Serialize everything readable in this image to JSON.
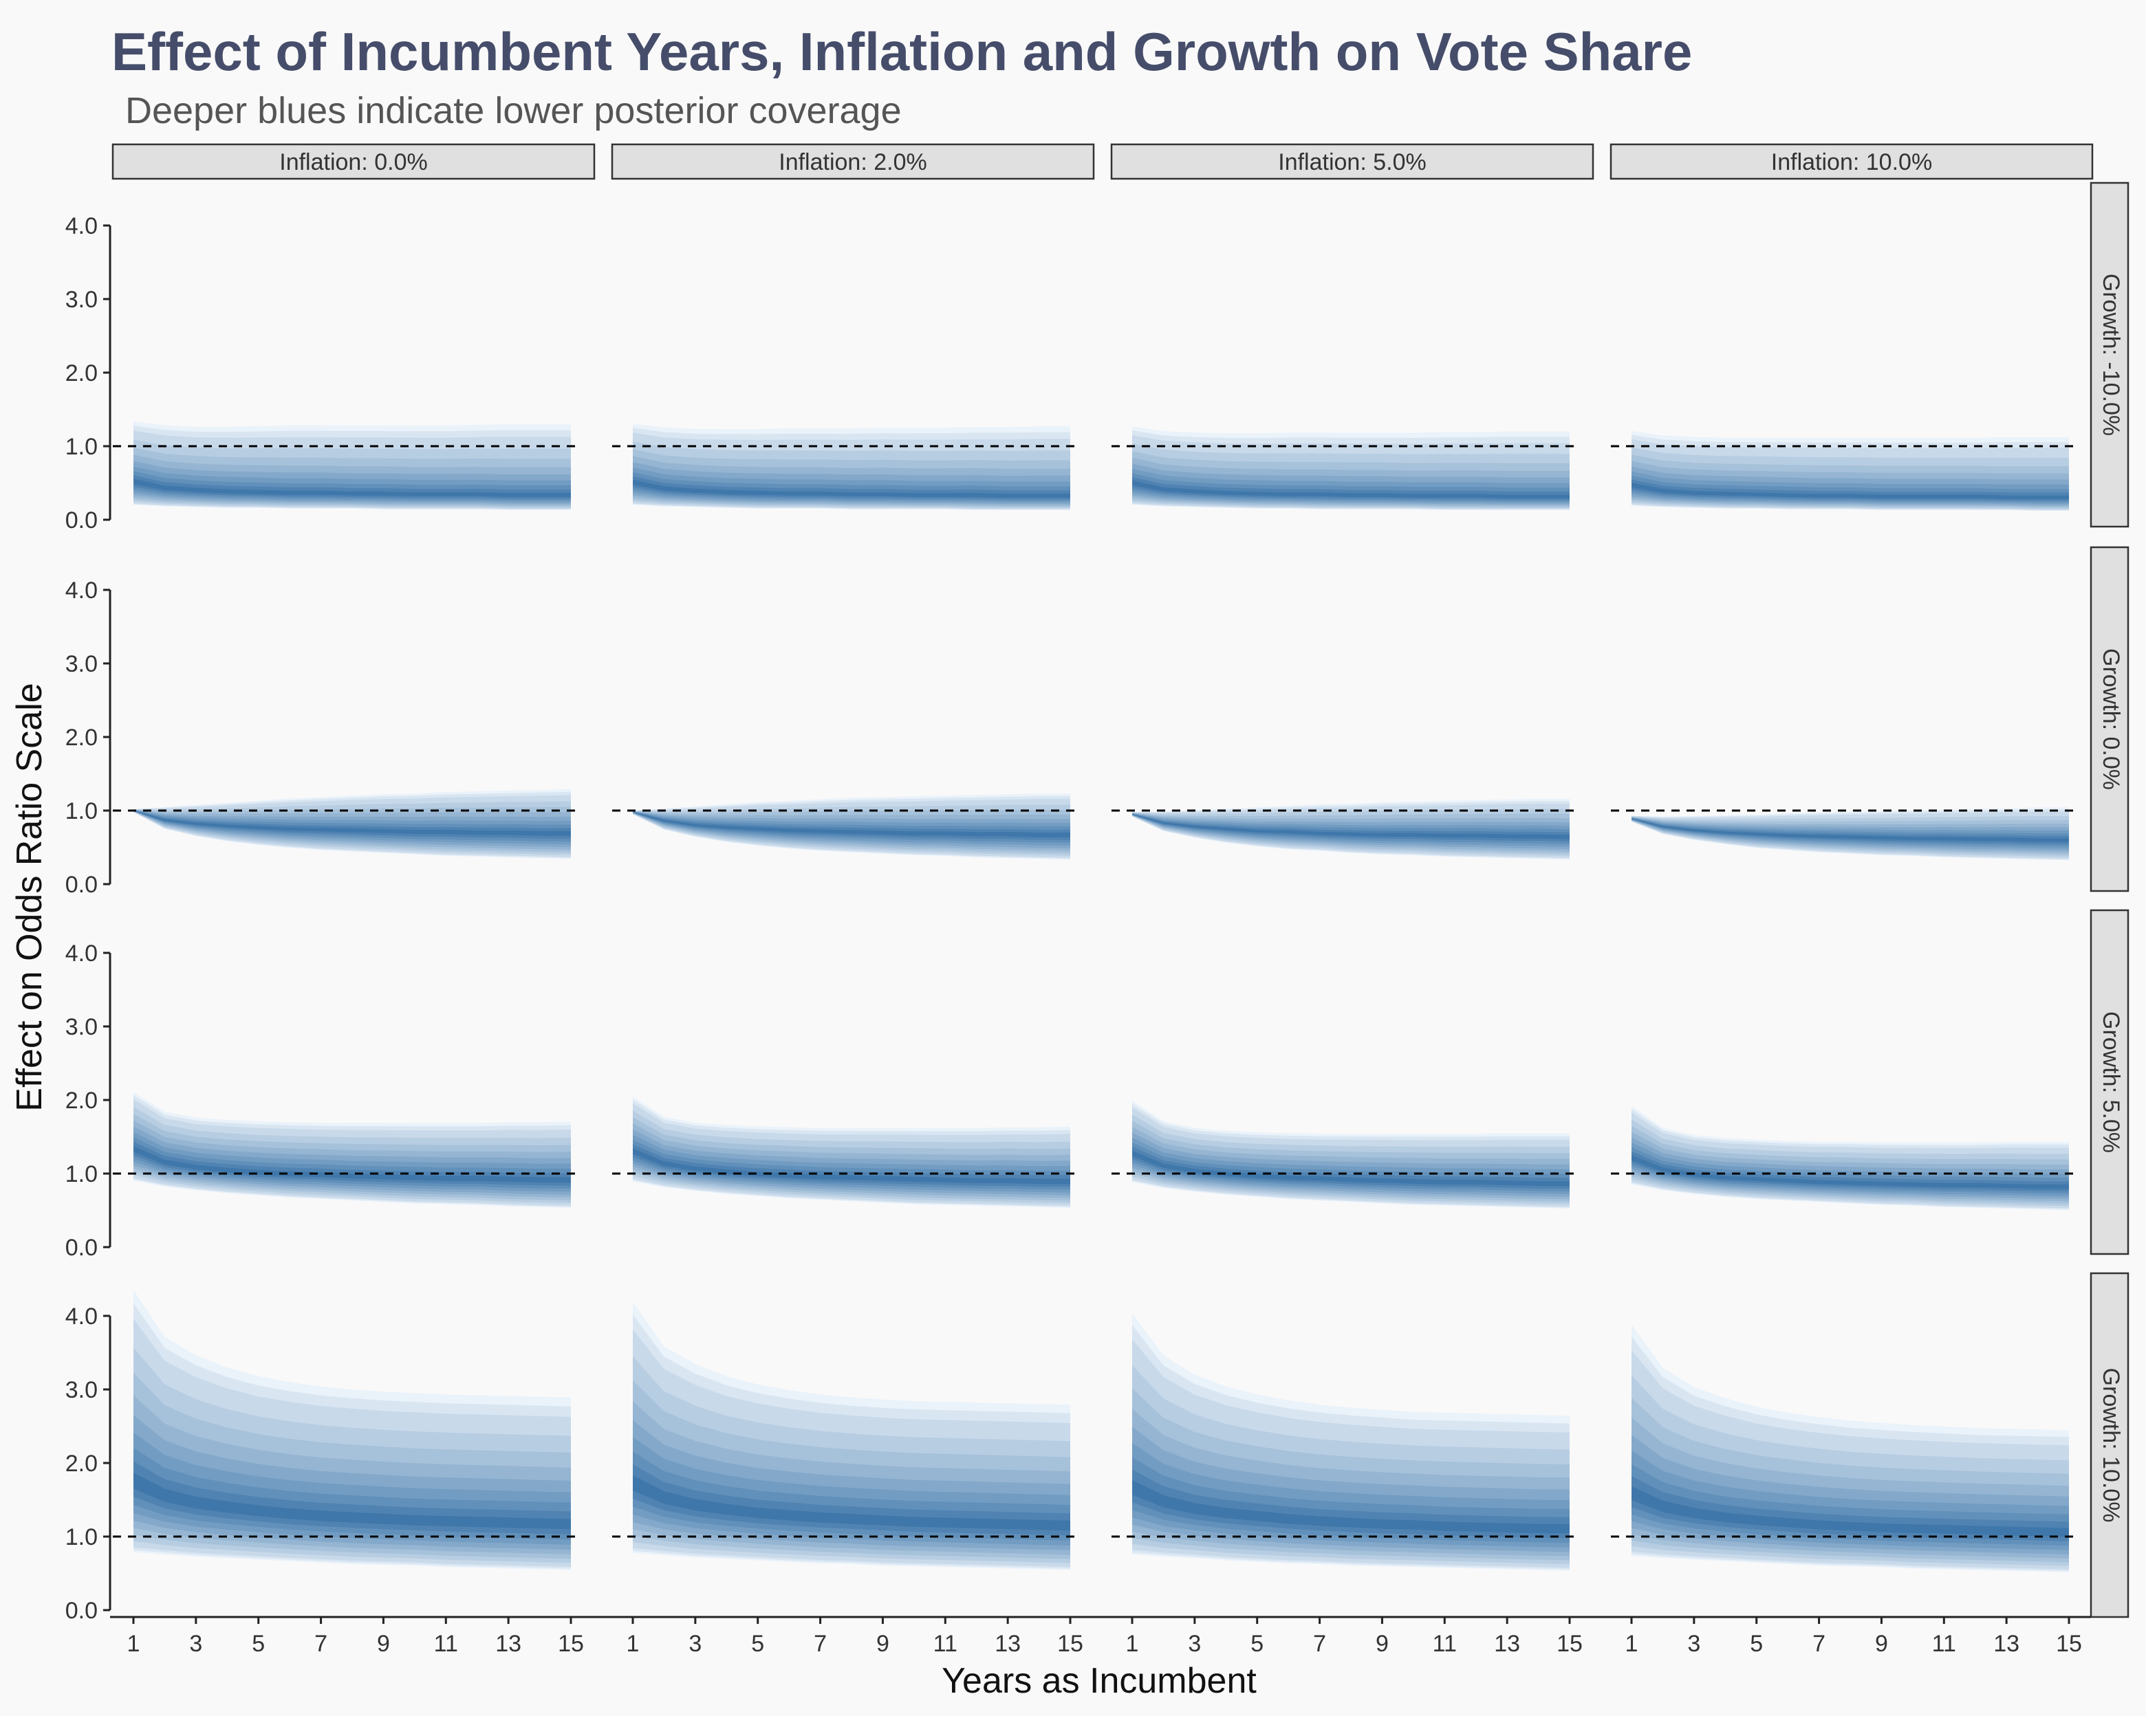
{
  "title": "Effect of Incumbent Years, Inflation and Growth on Vote Share",
  "subtitle": "Deeper blues indicate lower posterior coverage",
  "colors": {
    "background": "#f9f9f9",
    "title": "#454d6a",
    "strip_fill": "#e0e0e0",
    "band_light": "#eaf2fa",
    "band_dark": "#3f77aa",
    "reference_line": "#000000"
  },
  "chart_data": {
    "type": "area",
    "facet_rows": [
      "Growth: -10.0%",
      "Growth: 0.0%",
      "Growth: 5.0%",
      "Growth: 10.0%"
    ],
    "facet_cols": [
      "Inflation: 0.0%",
      "Inflation: 2.0%",
      "Inflation: 5.0%",
      "Inflation: 10.0%"
    ],
    "xlabel": "Years as Incumbent",
    "ylabel": "Effect on Odds Ratio Scale",
    "x_ticks": [
      1,
      3,
      5,
      7,
      9,
      11,
      13,
      15
    ],
    "y_ticks": [
      "0.0",
      "1.0",
      "2.0",
      "3.0",
      "4.0"
    ],
    "xlim": [
      1,
      15
    ],
    "ylim": [
      0,
      4
    ],
    "reference_line_y": 1.0,
    "x": [
      1,
      2,
      3,
      4,
      5,
      6,
      7,
      8,
      9,
      10,
      11,
      12,
      13,
      14,
      15
    ],
    "coverage_levels": [
      0.99,
      0.95,
      0.9,
      0.8,
      0.7,
      0.6,
      0.5,
      0.4,
      0.3,
      0.2,
      0.1
    ],
    "panels": [
      {
        "row": 0,
        "col": 0,
        "median": [
          0.52,
          0.43,
          0.4,
          0.38,
          0.37,
          0.36,
          0.36,
          0.35,
          0.35,
          0.34,
          0.34,
          0.34,
          0.33,
          0.33,
          0.33
        ],
        "lower": [
          0.2,
          0.18,
          0.17,
          0.16,
          0.16,
          0.15,
          0.15,
          0.15,
          0.14,
          0.14,
          0.14,
          0.14,
          0.13,
          0.13,
          0.13
        ],
        "upper": [
          1.35,
          1.3,
          1.28,
          1.28,
          1.29,
          1.3,
          1.3,
          1.3,
          1.3,
          1.3,
          1.3,
          1.31,
          1.32,
          1.32,
          1.32
        ]
      },
      {
        "row": 0,
        "col": 1,
        "median": [
          0.51,
          0.42,
          0.39,
          0.37,
          0.36,
          0.35,
          0.35,
          0.34,
          0.34,
          0.33,
          0.33,
          0.33,
          0.32,
          0.32,
          0.32
        ],
        "lower": [
          0.2,
          0.18,
          0.17,
          0.16,
          0.15,
          0.15,
          0.15,
          0.14,
          0.14,
          0.14,
          0.14,
          0.13,
          0.13,
          0.13,
          0.13
        ],
        "upper": [
          1.32,
          1.27,
          1.25,
          1.25,
          1.25,
          1.26,
          1.26,
          1.26,
          1.27,
          1.27,
          1.27,
          1.28,
          1.28,
          1.29,
          1.29
        ]
      },
      {
        "row": 0,
        "col": 2,
        "median": [
          0.5,
          0.41,
          0.38,
          0.36,
          0.35,
          0.34,
          0.34,
          0.33,
          0.33,
          0.32,
          0.32,
          0.32,
          0.31,
          0.31,
          0.31
        ],
        "lower": [
          0.2,
          0.18,
          0.17,
          0.16,
          0.15,
          0.15,
          0.14,
          0.14,
          0.14,
          0.14,
          0.13,
          0.13,
          0.13,
          0.13,
          0.13
        ],
        "upper": [
          1.28,
          1.22,
          1.2,
          1.19,
          1.19,
          1.2,
          1.2,
          1.2,
          1.2,
          1.2,
          1.21,
          1.21,
          1.22,
          1.22,
          1.22
        ]
      },
      {
        "row": 0,
        "col": 3,
        "median": [
          0.47,
          0.39,
          0.36,
          0.35,
          0.34,
          0.33,
          0.32,
          0.32,
          0.31,
          0.31,
          0.31,
          0.31,
          0.3,
          0.3,
          0.3
        ],
        "lower": [
          0.19,
          0.17,
          0.16,
          0.15,
          0.15,
          0.14,
          0.14,
          0.14,
          0.13,
          0.13,
          0.13,
          0.13,
          0.13,
          0.12,
          0.12
        ],
        "upper": [
          1.22,
          1.16,
          1.14,
          1.13,
          1.13,
          1.13,
          1.13,
          1.13,
          1.13,
          1.13,
          1.13,
          1.13,
          1.14,
          1.14,
          1.14
        ]
      },
      {
        "row": 1,
        "col": 0,
        "median": [
          1.0,
          0.87,
          0.82,
          0.79,
          0.77,
          0.75,
          0.74,
          0.73,
          0.72,
          0.71,
          0.71,
          0.7,
          0.7,
          0.69,
          0.69
        ],
        "lower": [
          0.98,
          0.75,
          0.65,
          0.58,
          0.53,
          0.49,
          0.46,
          0.44,
          0.42,
          0.4,
          0.38,
          0.37,
          0.36,
          0.35,
          0.34
        ],
        "upper": [
          1.02,
          1.05,
          1.08,
          1.11,
          1.14,
          1.17,
          1.19,
          1.21,
          1.23,
          1.24,
          1.26,
          1.27,
          1.28,
          1.29,
          1.3
        ]
      },
      {
        "row": 1,
        "col": 1,
        "median": [
          0.98,
          0.86,
          0.8,
          0.77,
          0.75,
          0.73,
          0.72,
          0.71,
          0.7,
          0.69,
          0.69,
          0.68,
          0.68,
          0.67,
          0.67
        ],
        "lower": [
          0.95,
          0.74,
          0.64,
          0.57,
          0.52,
          0.48,
          0.45,
          0.43,
          0.41,
          0.39,
          0.38,
          0.36,
          0.35,
          0.34,
          0.33
        ],
        "upper": [
          1.0,
          1.03,
          1.06,
          1.09,
          1.12,
          1.14,
          1.16,
          1.18,
          1.19,
          1.2,
          1.21,
          1.22,
          1.23,
          1.24,
          1.24
        ]
      },
      {
        "row": 1,
        "col": 2,
        "median": [
          0.95,
          0.83,
          0.78,
          0.75,
          0.72,
          0.71,
          0.69,
          0.68,
          0.67,
          0.67,
          0.66,
          0.66,
          0.65,
          0.65,
          0.64
        ],
        "lower": [
          0.92,
          0.72,
          0.63,
          0.56,
          0.51,
          0.47,
          0.45,
          0.42,
          0.4,
          0.39,
          0.37,
          0.36,
          0.35,
          0.34,
          0.33
        ],
        "upper": [
          0.98,
          0.99,
          1.01,
          1.03,
          1.05,
          1.07,
          1.09,
          1.1,
          1.12,
          1.13,
          1.14,
          1.15,
          1.16,
          1.17,
          1.17
        ]
      },
      {
        "row": 1,
        "col": 3,
        "median": [
          0.89,
          0.78,
          0.73,
          0.7,
          0.68,
          0.66,
          0.65,
          0.64,
          0.63,
          0.62,
          0.62,
          0.61,
          0.61,
          0.6,
          0.6
        ],
        "lower": [
          0.85,
          0.68,
          0.6,
          0.54,
          0.49,
          0.46,
          0.43,
          0.41,
          0.39,
          0.38,
          0.36,
          0.35,
          0.34,
          0.33,
          0.32
        ],
        "upper": [
          0.93,
          0.92,
          0.93,
          0.94,
          0.95,
          0.97,
          0.98,
          0.99,
          1.0,
          1.01,
          1.02,
          1.03,
          1.04,
          1.05,
          1.05
        ]
      },
      {
        "row": 2,
        "col": 0,
        "median": [
          1.33,
          1.15,
          1.08,
          1.04,
          1.01,
          0.99,
          0.98,
          0.96,
          0.95,
          0.94,
          0.93,
          0.93,
          0.92,
          0.91,
          0.91
        ],
        "lower": [
          0.9,
          0.82,
          0.77,
          0.73,
          0.7,
          0.67,
          0.65,
          0.63,
          0.61,
          0.59,
          0.58,
          0.57,
          0.55,
          0.54,
          0.53
        ],
        "upper": [
          2.12,
          1.85,
          1.77,
          1.74,
          1.72,
          1.71,
          1.7,
          1.7,
          1.7,
          1.7,
          1.7,
          1.7,
          1.71,
          1.71,
          1.72
        ]
      },
      {
        "row": 2,
        "col": 1,
        "median": [
          1.3,
          1.13,
          1.06,
          1.02,
          0.99,
          0.97,
          0.95,
          0.94,
          0.93,
          0.92,
          0.91,
          0.9,
          0.9,
          0.89,
          0.89
        ],
        "lower": [
          0.89,
          0.81,
          0.76,
          0.72,
          0.69,
          0.66,
          0.64,
          0.62,
          0.6,
          0.58,
          0.57,
          0.56,
          0.55,
          0.54,
          0.53
        ],
        "upper": [
          2.06,
          1.78,
          1.7,
          1.67,
          1.65,
          1.64,
          1.63,
          1.63,
          1.63,
          1.63,
          1.63,
          1.63,
          1.64,
          1.64,
          1.65
        ]
      },
      {
        "row": 2,
        "col": 2,
        "median": [
          1.27,
          1.1,
          1.03,
          0.99,
          0.96,
          0.94,
          0.93,
          0.91,
          0.9,
          0.89,
          0.88,
          0.88,
          0.87,
          0.86,
          0.86
        ],
        "lower": [
          0.88,
          0.8,
          0.75,
          0.71,
          0.68,
          0.65,
          0.63,
          0.61,
          0.59,
          0.57,
          0.56,
          0.55,
          0.54,
          0.53,
          0.52
        ],
        "upper": [
          2.0,
          1.72,
          1.63,
          1.59,
          1.57,
          1.56,
          1.55,
          1.55,
          1.55,
          1.55,
          1.55,
          1.55,
          1.56,
          1.56,
          1.56
        ]
      },
      {
        "row": 2,
        "col": 3,
        "median": [
          1.21,
          1.05,
          0.98,
          0.94,
          0.92,
          0.9,
          0.88,
          0.87,
          0.86,
          0.85,
          0.84,
          0.84,
          0.83,
          0.82,
          0.82
        ],
        "lower": [
          0.85,
          0.77,
          0.72,
          0.68,
          0.65,
          0.63,
          0.61,
          0.59,
          0.57,
          0.56,
          0.54,
          0.53,
          0.52,
          0.51,
          0.5
        ],
        "upper": [
          1.93,
          1.63,
          1.53,
          1.49,
          1.47,
          1.45,
          1.44,
          1.44,
          1.43,
          1.43,
          1.43,
          1.43,
          1.44,
          1.44,
          1.44
        ]
      },
      {
        "row": 3,
        "col": 0,
        "median": [
          1.75,
          1.55,
          1.45,
          1.39,
          1.34,
          1.3,
          1.27,
          1.25,
          1.23,
          1.21,
          1.2,
          1.19,
          1.18,
          1.17,
          1.16
        ],
        "lower": [
          0.78,
          0.75,
          0.72,
          0.7,
          0.68,
          0.66,
          0.64,
          0.62,
          0.61,
          0.6,
          0.58,
          0.57,
          0.56,
          0.55,
          0.54
        ],
        "upper": [
          4.4,
          3.75,
          3.5,
          3.33,
          3.21,
          3.13,
          3.07,
          3.03,
          3.0,
          2.98,
          2.96,
          2.95,
          2.94,
          2.93,
          2.92
        ]
      },
      {
        "row": 3,
        "col": 1,
        "median": [
          1.72,
          1.52,
          1.42,
          1.36,
          1.31,
          1.28,
          1.25,
          1.23,
          1.21,
          1.19,
          1.18,
          1.17,
          1.16,
          1.15,
          1.14
        ],
        "lower": [
          0.77,
          0.74,
          0.71,
          0.69,
          0.67,
          0.65,
          0.63,
          0.62,
          0.6,
          0.59,
          0.58,
          0.57,
          0.56,
          0.55,
          0.54
        ],
        "upper": [
          4.23,
          3.62,
          3.38,
          3.21,
          3.1,
          3.02,
          2.96,
          2.92,
          2.89,
          2.87,
          2.86,
          2.85,
          2.84,
          2.83,
          2.82
        ]
      },
      {
        "row": 3,
        "col": 2,
        "median": [
          1.66,
          1.47,
          1.37,
          1.31,
          1.27,
          1.23,
          1.2,
          1.18,
          1.16,
          1.15,
          1.13,
          1.12,
          1.11,
          1.1,
          1.1
        ],
        "lower": [
          0.75,
          0.72,
          0.7,
          0.67,
          0.65,
          0.63,
          0.62,
          0.6,
          0.59,
          0.58,
          0.57,
          0.56,
          0.55,
          0.54,
          0.53
        ],
        "upper": [
          4.08,
          3.5,
          3.23,
          3.07,
          2.96,
          2.88,
          2.82,
          2.78,
          2.75,
          2.72,
          2.71,
          2.7,
          2.69,
          2.68,
          2.67
        ]
      },
      {
        "row": 3,
        "col": 3,
        "median": [
          1.58,
          1.4,
          1.31,
          1.25,
          1.21,
          1.18,
          1.15,
          1.13,
          1.11,
          1.1,
          1.09,
          1.08,
          1.07,
          1.06,
          1.05
        ],
        "lower": [
          0.73,
          0.7,
          0.68,
          0.66,
          0.64,
          0.62,
          0.6,
          0.59,
          0.58,
          0.56,
          0.55,
          0.54,
          0.53,
          0.52,
          0.51
        ],
        "upper": [
          3.92,
          3.33,
          3.06,
          2.91,
          2.79,
          2.71,
          2.65,
          2.6,
          2.57,
          2.54,
          2.52,
          2.5,
          2.49,
          2.48,
          2.47
        ]
      }
    ]
  }
}
